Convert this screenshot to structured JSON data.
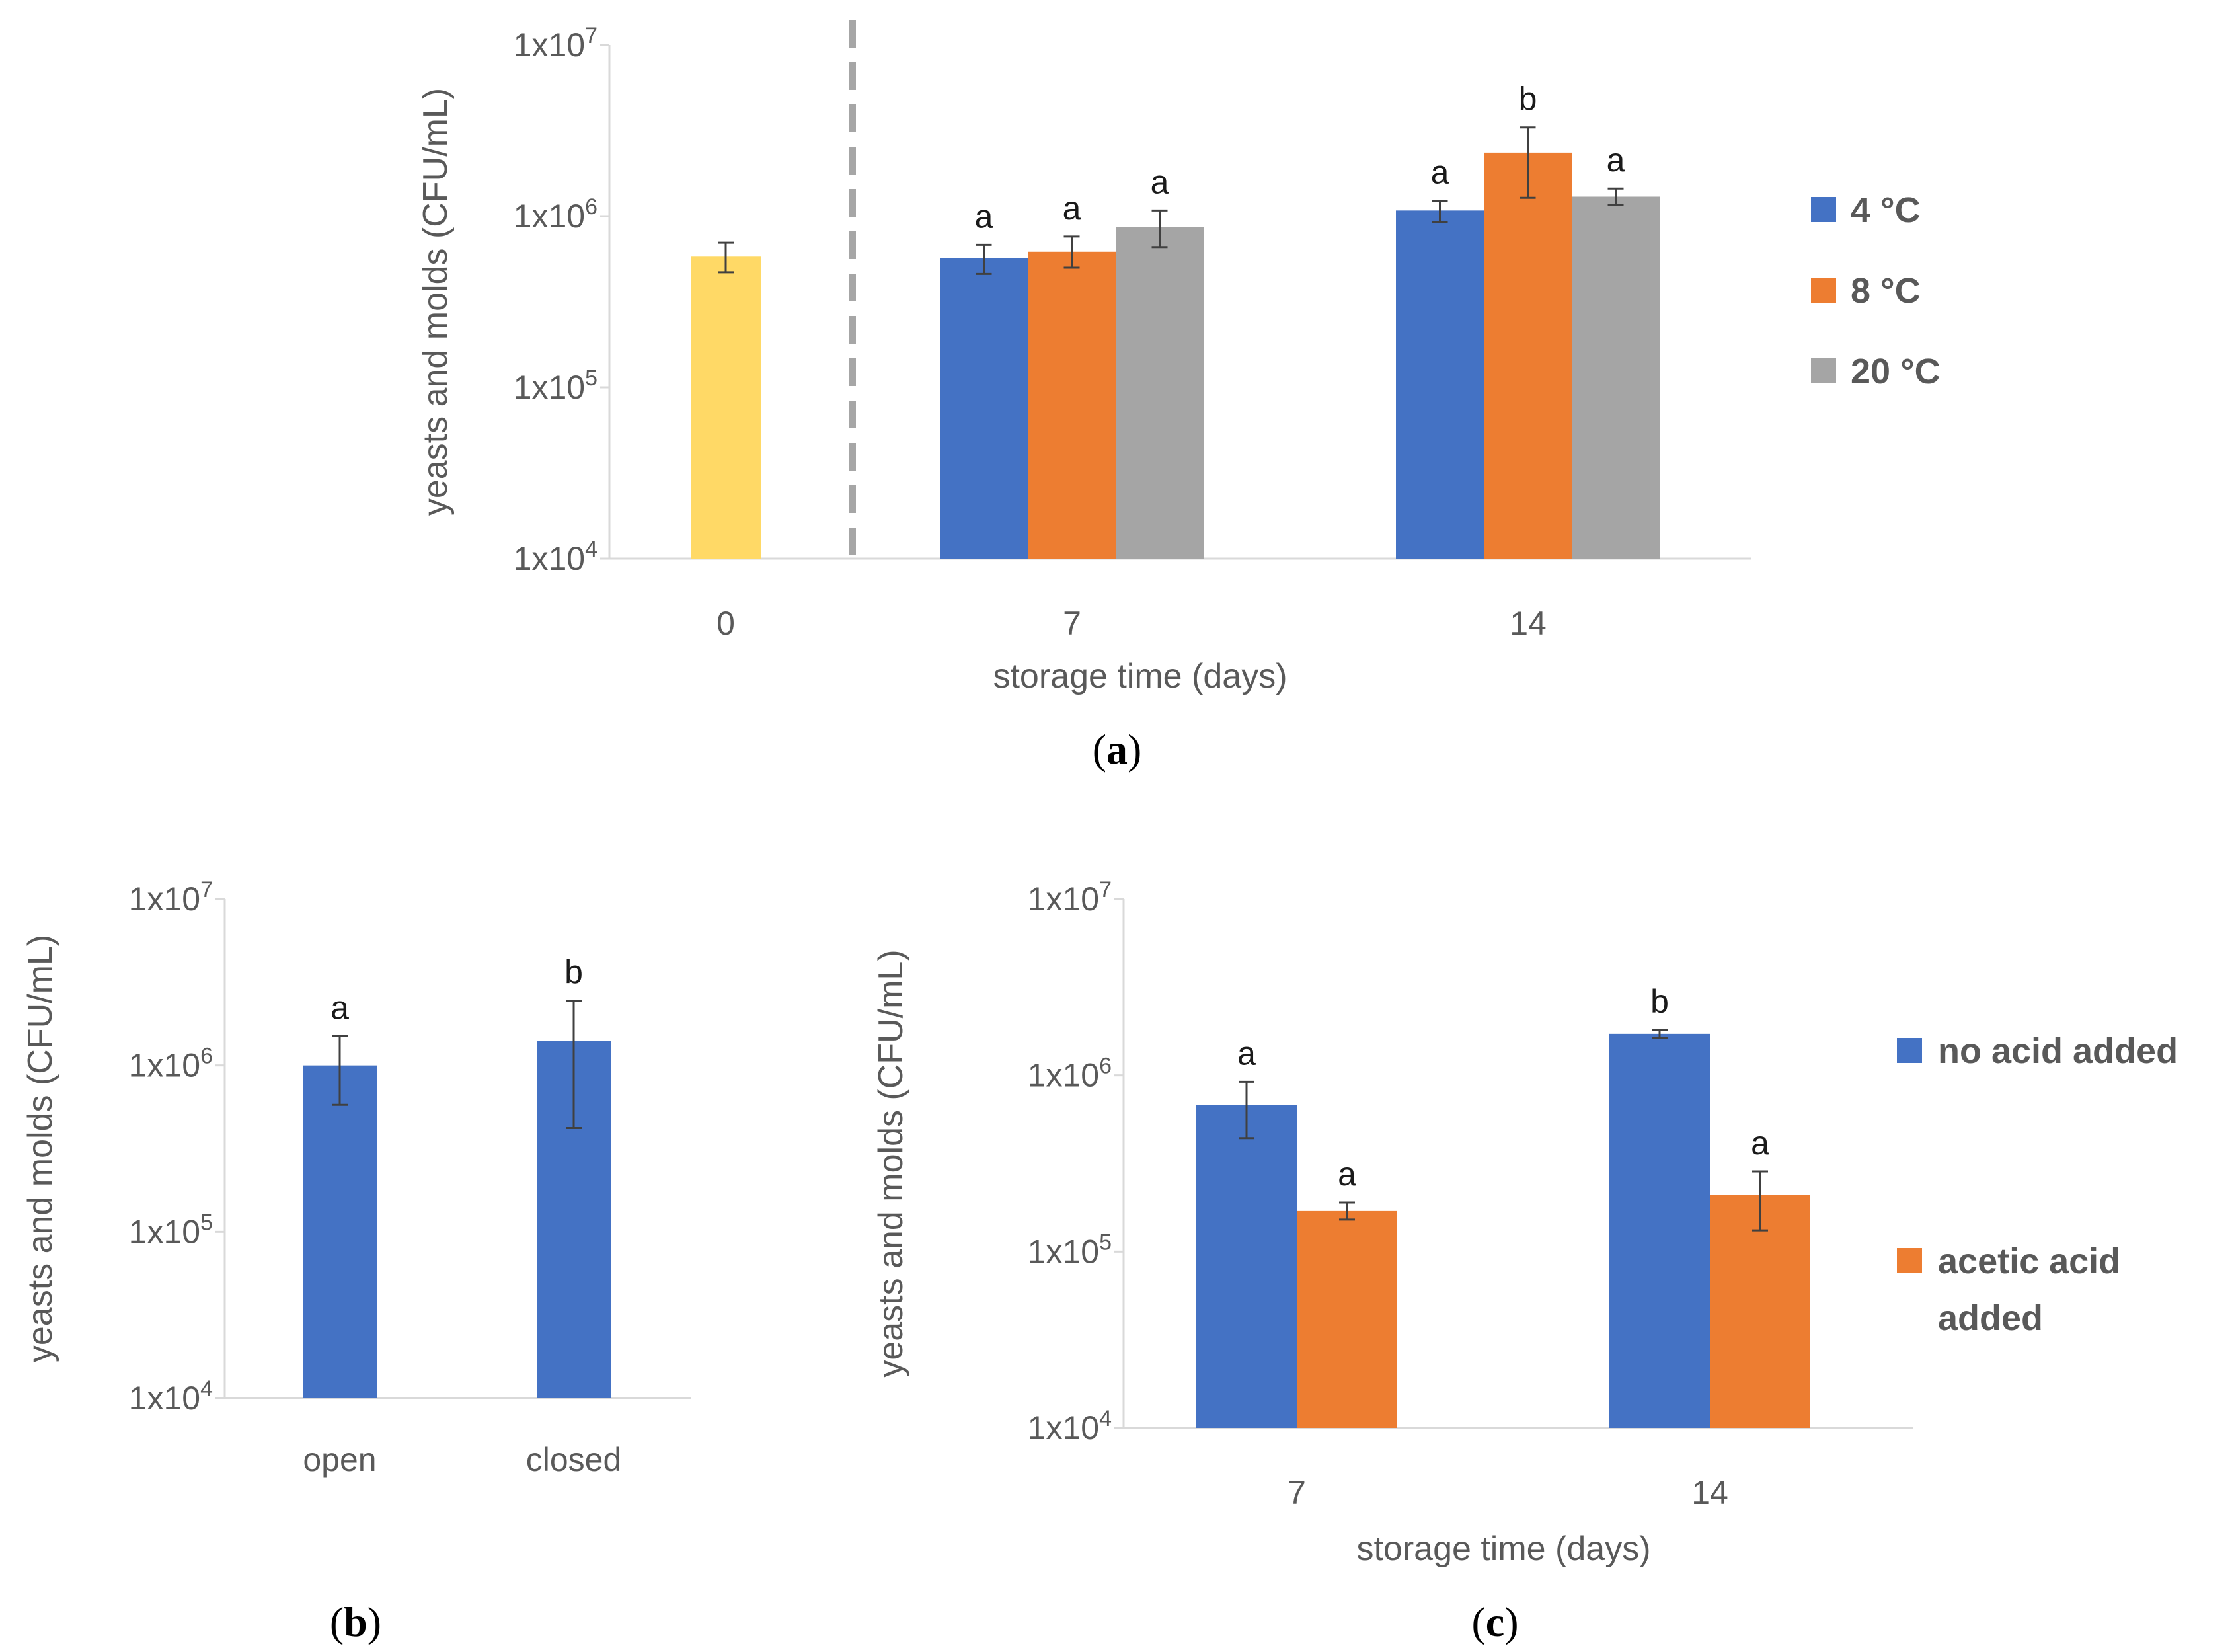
{
  "colors": {
    "yellow": "#FFD966",
    "blue": "#4472C4",
    "orange": "#ED7D31",
    "gray": "#A5A5A5",
    "axis": "#D9D9D9",
    "text": "#595959",
    "error": "#404040",
    "divider": "#A6A6A6"
  },
  "y_ticks": [
    {
      "value": 10000,
      "base": "1x10",
      "exp": "4"
    },
    {
      "value": 100000,
      "base": "1x10",
      "exp": "5"
    },
    {
      "value": 1000000,
      "base": "1x10",
      "exp": "6"
    },
    {
      "value": 10000000,
      "base": "1x10",
      "exp": "7"
    }
  ],
  "chart_data": [
    {
      "id": "a",
      "type": "bar",
      "panel_label": "a",
      "ylabel": "yeasts and molds (CFU/mL)",
      "xlabel": "storage time (days)",
      "yscale": "log",
      "ylim": [
        10000,
        10000000
      ],
      "categories": [
        "0",
        "7",
        "14"
      ],
      "day0": {
        "category": "0",
        "value": 580000,
        "err_low": 470000,
        "err_high": 700000,
        "color_key": "yellow"
      },
      "series": [
        {
          "name": "4 °C",
          "color_key": "blue",
          "values": [
            null,
            570000,
            1080000
          ],
          "err_low": [
            null,
            460000,
            920000
          ],
          "err_high": [
            null,
            680000,
            1230000
          ],
          "letters": [
            null,
            "a",
            "a"
          ]
        },
        {
          "name": "8 °C",
          "color_key": "orange",
          "values": [
            null,
            620000,
            2350000
          ],
          "err_low": [
            null,
            500000,
            1280000
          ],
          "err_high": [
            null,
            760000,
            3300000
          ],
          "letters": [
            null,
            "a",
            "b"
          ]
        },
        {
          "name": "20 °C",
          "color_key": "gray",
          "values": [
            null,
            860000,
            1300000
          ],
          "err_low": [
            null,
            660000,
            1160000
          ],
          "err_high": [
            null,
            1080000,
            1450000
          ],
          "letters": [
            null,
            "a",
            "a"
          ]
        }
      ],
      "legend": [
        "4 °C",
        "8 °C",
        "20 °C"
      ],
      "legend_position": "right"
    },
    {
      "id": "b",
      "type": "bar",
      "panel_label": "b",
      "ylabel": "yeasts and molds (CFU/mL)",
      "xlabel": "",
      "yscale": "log",
      "ylim": [
        10000,
        10000000
      ],
      "categories": [
        "open",
        "closed"
      ],
      "series": [
        {
          "name": "yeasts and molds",
          "color_key": "blue",
          "values": [
            1000000,
            1400000
          ],
          "err_low": [
            580000,
            420000
          ],
          "err_high": [
            1500000,
            2450000
          ],
          "letters": [
            "a",
            "b"
          ]
        }
      ]
    },
    {
      "id": "c",
      "type": "bar",
      "panel_label": "c",
      "ylabel": "yeasts and molds (CFU/mL)",
      "xlabel": "storage time (days)",
      "yscale": "log",
      "ylim": [
        10000,
        10000000
      ],
      "categories": [
        "7",
        "14"
      ],
      "series": [
        {
          "name": "no acid added",
          "color_key": "blue",
          "values": [
            680000,
            1720000
          ],
          "err_low": [
            440000,
            1630000
          ],
          "err_high": [
            920000,
            1810000
          ],
          "letters": [
            "a",
            "b"
          ]
        },
        {
          "name": "acetic acid added",
          "color_key": "orange",
          "values": [
            170000,
            210000
          ],
          "err_low": [
            152000,
            132000
          ],
          "err_high": [
            190000,
            285000
          ],
          "letters": [
            "a",
            "a"
          ]
        }
      ],
      "legend": [
        [
          "no acid added"
        ],
        [
          "acetic acid",
          "added"
        ]
      ],
      "legend_position": "right"
    }
  ]
}
